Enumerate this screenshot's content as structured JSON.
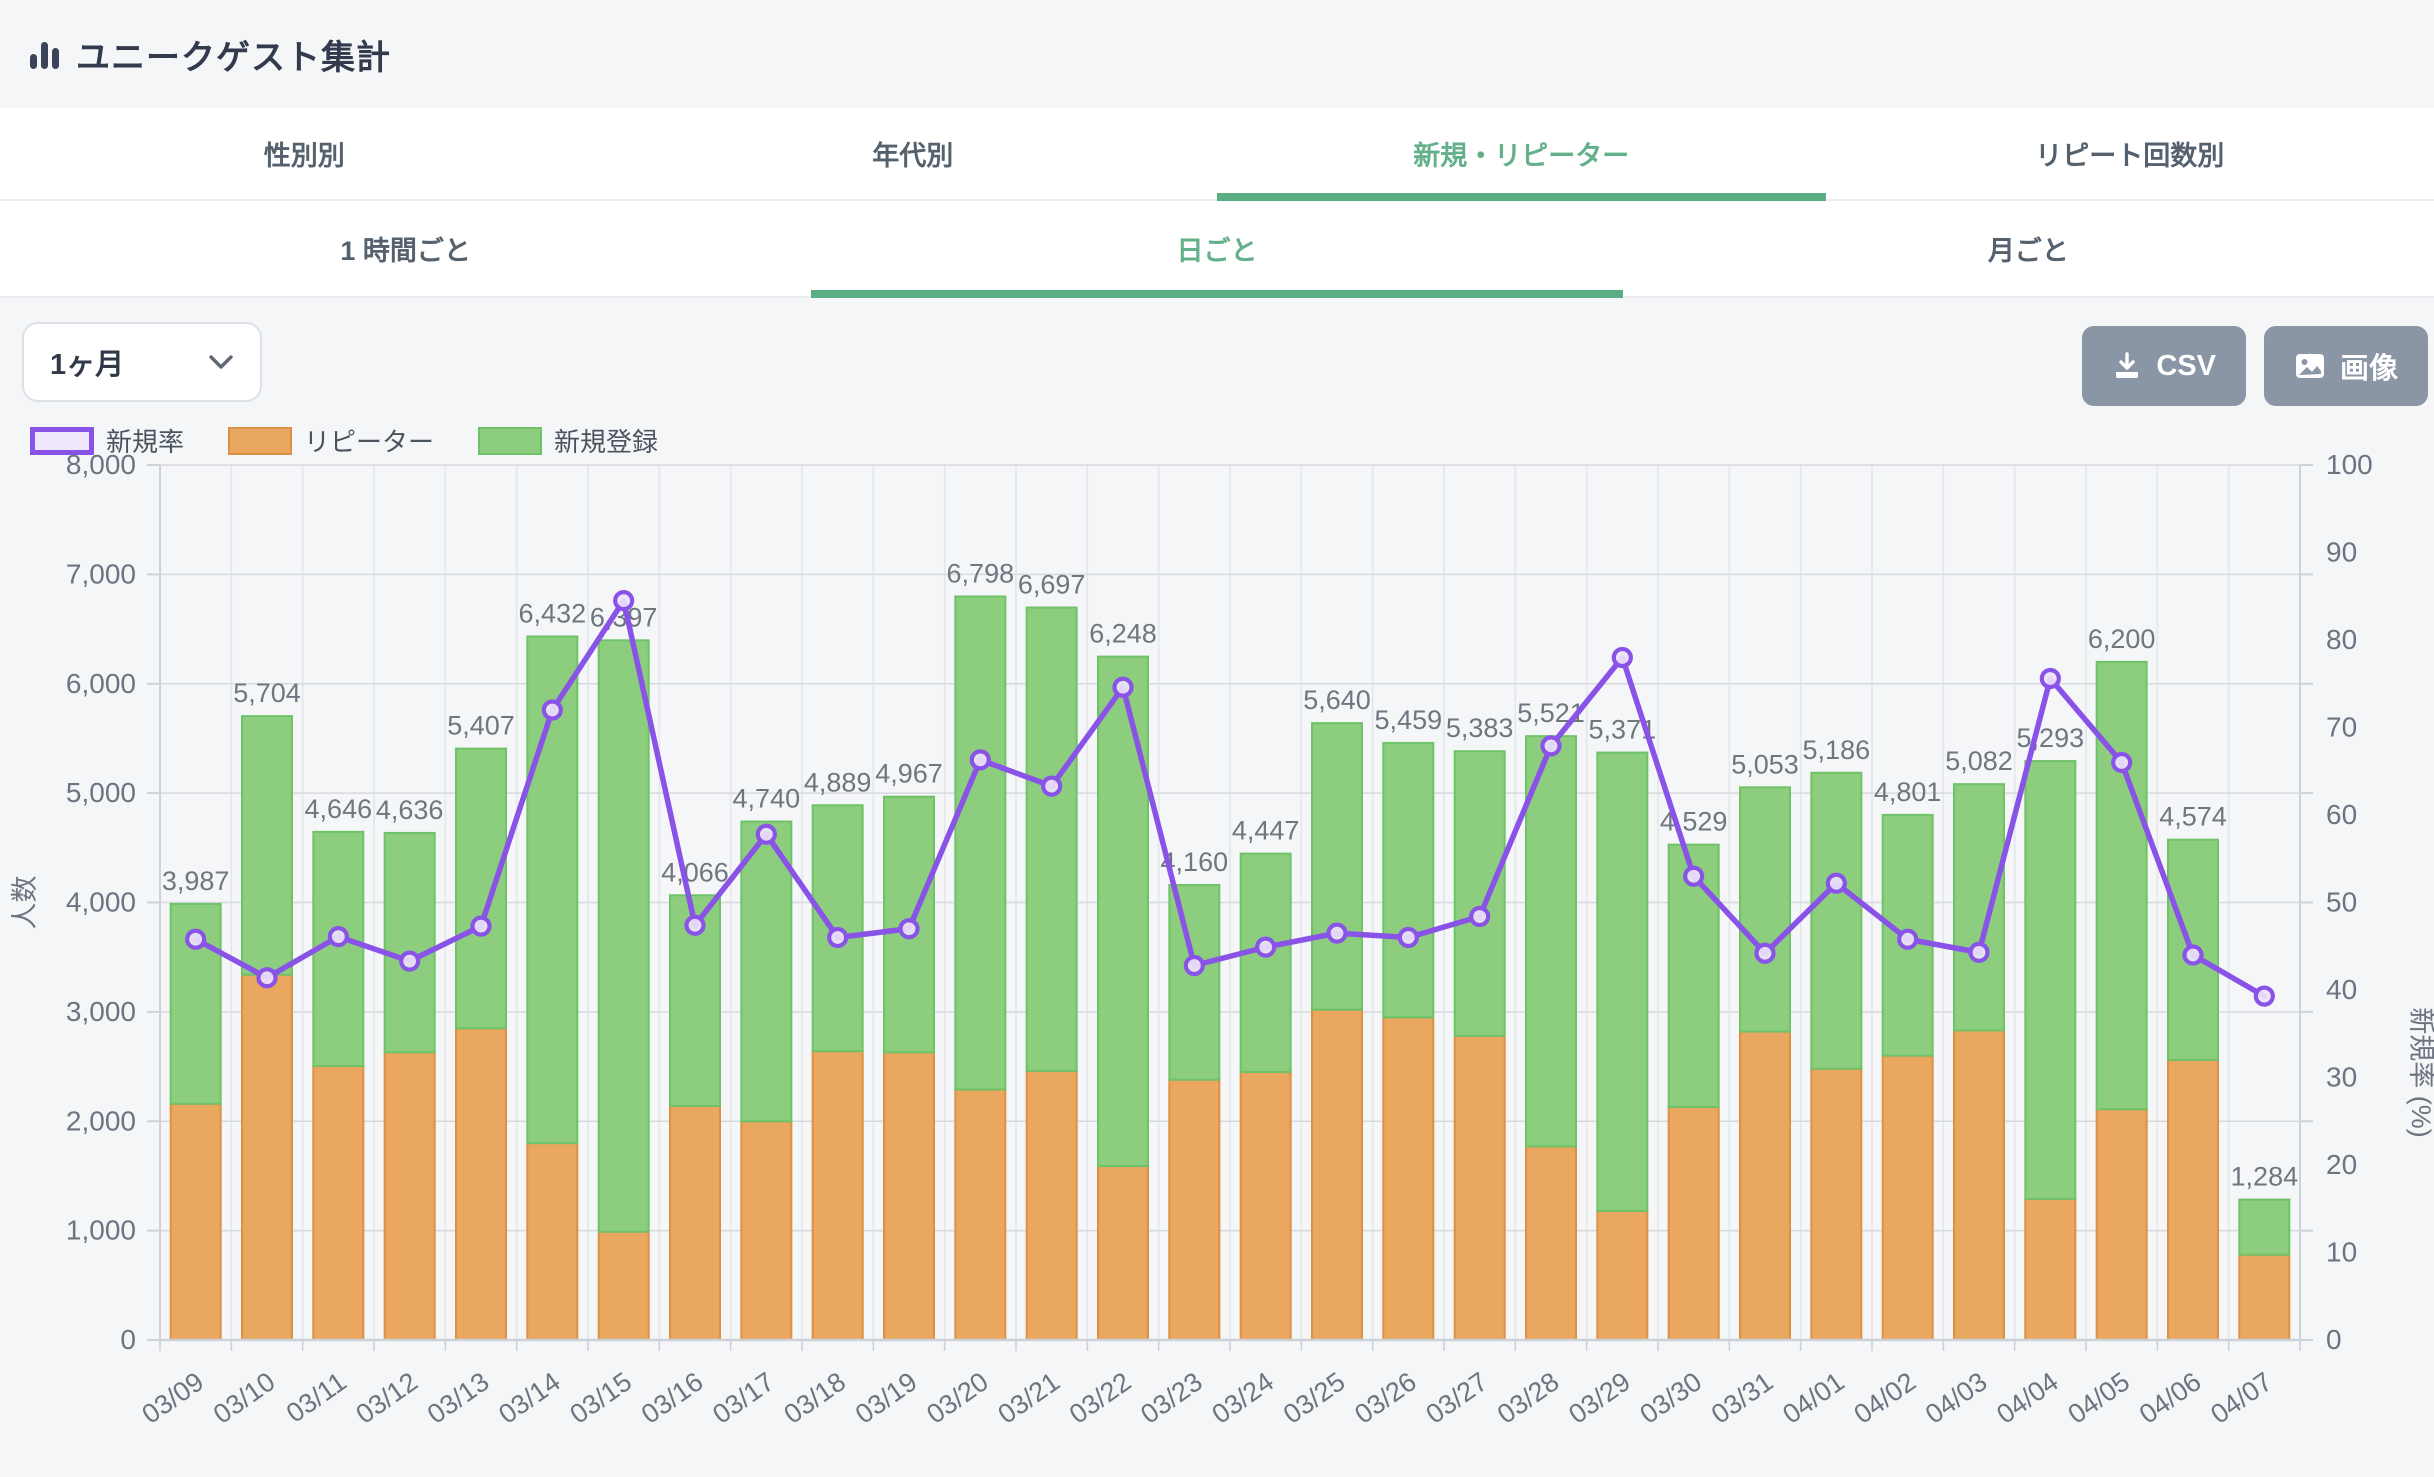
{
  "header": {
    "title": "ユニークゲスト集計"
  },
  "tabs_primary": [
    {
      "label": "性別別",
      "active": false
    },
    {
      "label": "年代別",
      "active": false
    },
    {
      "label": "新規・リピーター",
      "active": true
    },
    {
      "label": "リピート回数別",
      "active": false
    }
  ],
  "tabs_secondary": [
    {
      "label": "1 時間ごと",
      "active": false
    },
    {
      "label": "日ごと",
      "active": true
    },
    {
      "label": "月ごと",
      "active": false
    }
  ],
  "controls": {
    "period_value": "1ヶ月",
    "csv_label": "CSV",
    "image_label": "画像"
  },
  "legend": [
    {
      "label": "新規率",
      "fill": "#EFE7FC",
      "border": "#8A53E8"
    },
    {
      "label": "リピーター",
      "fill": "#E9A75F",
      "border": "#DB9143"
    },
    {
      "label": "新規登録",
      "fill": "#8CCE7E",
      "border": "#6FC268"
    }
  ],
  "colors": {
    "accent_green": "#5BAD84",
    "bar_orange": "#E9A75F",
    "bar_orange_border": "#DB9143",
    "bar_green": "#8CCE7E",
    "bar_green_border": "#6FC268",
    "line_purple": "#8A53E8",
    "marker_fill": "#EDE3FB",
    "button_gray": "#8A95A5",
    "grid": "#E3E6EA",
    "axis_border": "#CDD2D9",
    "tick_text": "#6B7480",
    "bar_label_text": "#6E7680"
  },
  "chart_data": {
    "type": "bar",
    "subtype": "stacked-bars-with-rate-line",
    "title": "",
    "categories": [
      "03/09",
      "03/10",
      "03/11",
      "03/12",
      "03/13",
      "03/14",
      "03/15",
      "03/16",
      "03/17",
      "03/18",
      "03/19",
      "03/20",
      "03/21",
      "03/22",
      "03/23",
      "03/24",
      "03/25",
      "03/26",
      "03/27",
      "03/28",
      "03/29",
      "03/30",
      "03/31",
      "04/01",
      "04/02",
      "04/03",
      "04/04",
      "04/05",
      "04/06",
      "04/07"
    ],
    "series": [
      {
        "name": "リピーター",
        "stack": "guests",
        "values": [
          2160,
          3340,
          2505,
          2630,
          2850,
          1800,
          990,
          2140,
          2000,
          2640,
          2630,
          2290,
          2460,
          1590,
          2380,
          2450,
          3020,
          2950,
          2780,
          1770,
          1180,
          2130,
          2820,
          2480,
          2600,
          2830,
          1290,
          2110,
          2560,
          780
        ]
      },
      {
        "name": "新規登録",
        "stack": "guests",
        "values": [
          1827,
          2364,
          2141,
          2006,
          2557,
          4632,
          5407,
          1926,
          2740,
          2249,
          2337,
          4508,
          4237,
          4658,
          1780,
          1997,
          2620,
          2509,
          2603,
          3751,
          4191,
          2399,
          2233,
          2706,
          2201,
          2252,
          4003,
          4090,
          2014,
          504
        ]
      }
    ],
    "totals": [
      3987,
      5704,
      4646,
      4636,
      5407,
      6432,
      6397,
      4066,
      4740,
      4889,
      4967,
      6798,
      6697,
      6248,
      4160,
      4447,
      5640,
      5459,
      5383,
      5521,
      5371,
      4529,
      5053,
      5186,
      4801,
      5082,
      5293,
      6200,
      4574,
      1284
    ],
    "total_labels": [
      "3,987",
      "5,704",
      "4,646",
      "4,636",
      "5,407",
      "6,432",
      "6,397",
      "4,066",
      "4,740",
      "4,889",
      "4,967",
      "6,798",
      "6,697",
      "6,248",
      "4,160",
      "4,447",
      "5,640",
      "5,459",
      "5,383",
      "5,521",
      "5,371",
      "4,529",
      "5,053",
      "5,186",
      "4,801",
      "5,082",
      "5,293",
      "6,200",
      "4,574",
      "1,284"
    ],
    "line_series": {
      "name": "新規率",
      "axis": "right",
      "values": [
        45.8,
        41.4,
        46.1,
        43.3,
        47.3,
        72.0,
        84.5,
        47.4,
        57.8,
        46.0,
        47.0,
        66.3,
        63.3,
        74.6,
        42.8,
        44.9,
        46.5,
        46.0,
        48.4,
        67.9,
        78.0,
        53.0,
        44.2,
        52.2,
        45.8,
        44.3,
        75.6,
        66.0,
        44.0,
        39.3
      ]
    },
    "left_axis": {
      "title": "人数",
      "min": 0,
      "max": 8000,
      "step": 1000,
      "tick_labels": [
        "0",
        "1,000",
        "2,000",
        "3,000",
        "4,000",
        "5,000",
        "6,000",
        "7,000",
        "8,000"
      ]
    },
    "right_axis": {
      "title": "新規率 (%)",
      "min": 0,
      "max": 100,
      "step": 10,
      "tick_labels": [
        "0",
        "10",
        "20",
        "30",
        "40",
        "50",
        "60",
        "70",
        "80",
        "90",
        "100"
      ]
    },
    "grid": true,
    "legend_position": "top-left"
  }
}
